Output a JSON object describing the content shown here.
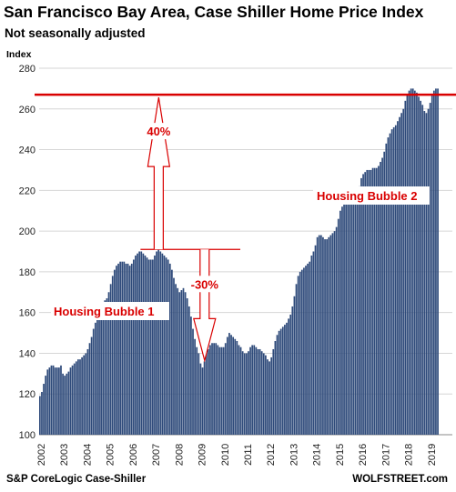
{
  "chart_data": {
    "type": "bar",
    "title": "San Francisco Bay Area, Case Shiller Home Price Index",
    "subtitle": "Not seasonally adjusted",
    "ylabel": "Index",
    "ylim": [
      100,
      280
    ],
    "yticks": [
      100,
      120,
      140,
      160,
      180,
      200,
      220,
      240,
      260,
      280
    ],
    "xticks": [
      "2002",
      "2003",
      "2004",
      "2005",
      "2006",
      "2007",
      "2008",
      "2009",
      "2010",
      "2011",
      "2012",
      "2013",
      "2014",
      "2015",
      "2016",
      "2017",
      "2018",
      "2019"
    ],
    "start": "2002-01",
    "frequency": "monthly",
    "bar_color": "#2e4a7a",
    "values": [
      119,
      121,
      125,
      129,
      132,
      133,
      134,
      134,
      133,
      133,
      133,
      134,
      130,
      129,
      130,
      131,
      133,
      134,
      135,
      136,
      137,
      137,
      138,
      139,
      140,
      142,
      145,
      148,
      152,
      155,
      158,
      161,
      163,
      165,
      166,
      167,
      170,
      174,
      178,
      181,
      183,
      184,
      185,
      185,
      185,
      184,
      184,
      183,
      184,
      186,
      188,
      189,
      190,
      190,
      189,
      188,
      187,
      186,
      186,
      186,
      188,
      190,
      191,
      190,
      189,
      188,
      187,
      186,
      184,
      181,
      177,
      174,
      172,
      170,
      171,
      172,
      170,
      167,
      163,
      158,
      152,
      147,
      143,
      140,
      135,
      133,
      136,
      140,
      142,
      144,
      145,
      145,
      145,
      144,
      143,
      143,
      143,
      145,
      148,
      150,
      149,
      148,
      147,
      146,
      144,
      143,
      141,
      140,
      140,
      141,
      143,
      144,
      144,
      143,
      142,
      142,
      141,
      140,
      139,
      137,
      136,
      138,
      142,
      146,
      149,
      151,
      152,
      153,
      154,
      155,
      157,
      159,
      163,
      168,
      174,
      178,
      180,
      181,
      182,
      183,
      184,
      185,
      188,
      190,
      193,
      197,
      198,
      198,
      197,
      196,
      196,
      197,
      198,
      199,
      200,
      202,
      206,
      210,
      212,
      213,
      214,
      215,
      215,
      216,
      217,
      218,
      220,
      222,
      226,
      228,
      229,
      230,
      230,
      230,
      231,
      231,
      231,
      232,
      234,
      236,
      239,
      243,
      246,
      248,
      250,
      251,
      252,
      254,
      256,
      258,
      260,
      264,
      267,
      269,
      270,
      270,
      269,
      268,
      266,
      264,
      262,
      259,
      258,
      260,
      263,
      267,
      269,
      270,
      270
    ],
    "reference_line": {
      "value": 267,
      "color": "#d90000"
    },
    "annotations": [
      {
        "text": "Housing Bubble 1",
        "color": "#d90000"
      },
      {
        "text": "Housing Bubble 2",
        "color": "#d90000"
      },
      {
        "text": "40%",
        "color": "#d90000"
      },
      {
        "text": "-30%",
        "color": "#d90000"
      }
    ]
  },
  "source": "S&P CoreLogic Case-Shiller",
  "brand": "WOLFSTREET.com"
}
